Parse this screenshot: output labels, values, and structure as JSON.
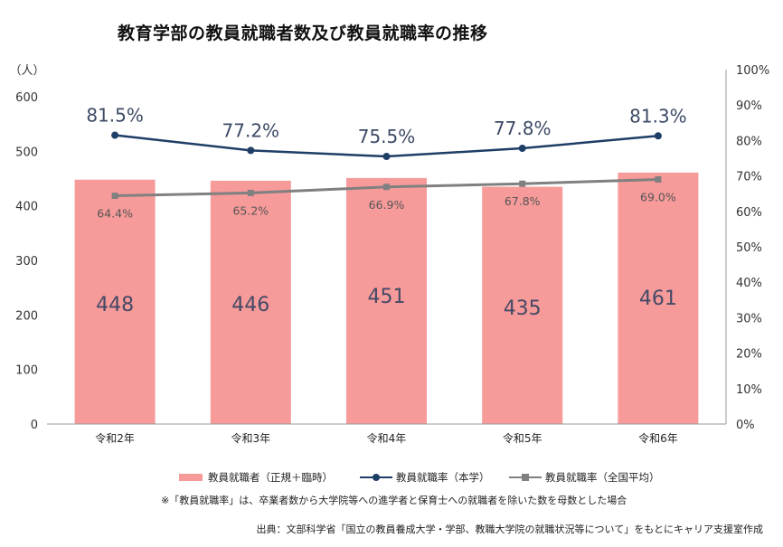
{
  "chart_data": {
    "type": "bar",
    "title": "教育学部の教員就職者数及び教員就職率の推移",
    "categories": [
      "令和2年",
      "令和3年",
      "令和4年",
      "令和5年",
      "令和6年"
    ],
    "y_left": {
      "unit_label": "（人）",
      "min": 0,
      "max": 600,
      "ticks": [
        0,
        100,
        200,
        300,
        400,
        500,
        600
      ]
    },
    "y_right": {
      "min": 0,
      "max": 100,
      "ticks": [
        "0%",
        "10%",
        "20%",
        "30%",
        "40%",
        "50%",
        "60%",
        "70%",
        "80%",
        "90%",
        "100%"
      ]
    },
    "series": [
      {
        "name": "教員就職者（正規＋臨時）",
        "kind": "bar",
        "axis": "left",
        "color": "#f79a9a",
        "values": [
          448,
          446,
          451,
          435,
          461
        ],
        "labels": [
          "448",
          "446",
          "451",
          "435",
          "461"
        ]
      },
      {
        "name": "教員就職率（本学）",
        "kind": "line",
        "axis": "right",
        "color": "#1f3e66",
        "values": [
          81.5,
          77.2,
          75.5,
          77.8,
          81.3
        ],
        "labels": [
          "81.5%",
          "77.2%",
          "75.5%",
          "77.8%",
          "81.3%"
        ]
      },
      {
        "name": "教員就職率（全国平均）",
        "kind": "line",
        "axis": "right",
        "color": "#808080",
        "values": [
          64.4,
          65.2,
          66.9,
          67.8,
          69.0
        ],
        "labels": [
          "64.4%",
          "65.2%",
          "66.9%",
          "67.8%",
          "69.0%"
        ]
      }
    ],
    "legend_position": "bottom",
    "grid": false
  },
  "note": "※「教員就職率」は、卒業者数から大学院等への進学者と保育士への就職者を除いた数を母数とした場合",
  "source": "出典：文部科学省「国立の教員養成大学・学部、教職大学院の就職状況等について」をもとにキャリア支援室作成"
}
